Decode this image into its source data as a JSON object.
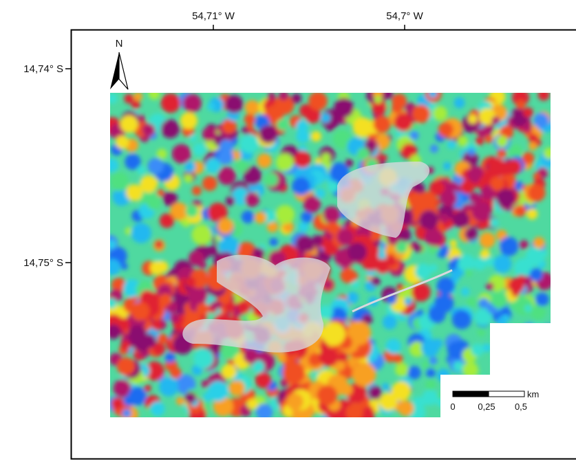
{
  "map": {
    "x_axis_labels": [
      "54,71° W",
      "54,7° W"
    ],
    "y_axis_labels": [
      "14,74° S",
      "14,75° S"
    ],
    "north_label": "N",
    "scale_bar": {
      "labels": [
        "0",
        "0,25",
        "0,5"
      ],
      "unit": "km"
    }
  }
}
